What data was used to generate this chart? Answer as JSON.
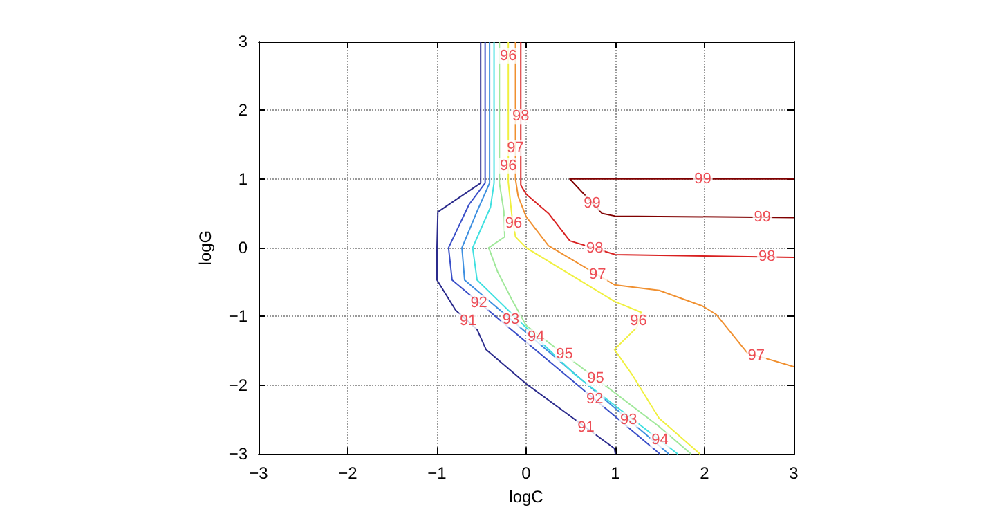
{
  "chart_data": {
    "type": "line",
    "xlabel": "logC",
    "ylabel": "logG",
    "xlim": [
      -3,
      3
    ],
    "ylim": [
      -3,
      3
    ],
    "xticks": [
      -3,
      -2,
      -1,
      0,
      1,
      2,
      3
    ],
    "yticks": [
      -3,
      -2,
      -1,
      0,
      1,
      2,
      3
    ],
    "grid": true,
    "marker": "none",
    "line_style": "solid",
    "series": [
      {
        "color": "#2b2b8c",
        "x": [
          -0.51,
          -0.51,
          -0.99,
          -1.0,
          -1.0,
          -0.79,
          -0.55,
          -0.45,
          0,
          0.99,
          1.0
        ],
        "values": [
          3,
          0.94,
          0.52,
          0,
          -0.47,
          -0.91,
          -1.19,
          -1.48,
          -1.98,
          -2.92,
          -3
        ]
      },
      {
        "color": "#3a4fc8",
        "x": [
          -0.46,
          -0.46,
          -0.64,
          -0.87,
          -0.83,
          1.5
        ],
        "values": [
          3,
          0.94,
          0.63,
          0,
          -0.47,
          -3
        ]
      },
      {
        "color": "#3d8fe0",
        "x": [
          -0.41,
          -0.41,
          -0.55,
          -0.72,
          -0.69,
          1.6
        ],
        "values": [
          3,
          0.94,
          0.53,
          0,
          -0.47,
          -3
        ]
      },
      {
        "color": "#40e0e0",
        "x": [
          -0.36,
          -0.36,
          -0.4,
          -0.6,
          -0.55,
          -0.05,
          0.55,
          1.7
        ],
        "values": [
          3,
          0.94,
          0.59,
          0,
          -0.47,
          -1.1,
          -1.85,
          -3
        ]
      },
      {
        "color": "#a0e89a",
        "x": [
          -0.3,
          -0.3,
          -0.25,
          -0.24,
          -0.42,
          -0.32,
          -0.15,
          0,
          1.49,
          1.85
        ],
        "values": [
          3,
          0.94,
          0.53,
          0.16,
          0,
          -0.35,
          -0.78,
          -1.13,
          -2.6,
          -3
        ]
      },
      {
        "color": "#f0f040",
        "x": [
          -0.2,
          -0.2,
          -0.16,
          -0.12,
          0,
          0.99,
          1.29,
          1.24,
          0.99,
          1.19,
          1.49,
          1.95
        ],
        "values": [
          3,
          0.95,
          0.47,
          0.16,
          0,
          -0.78,
          -0.94,
          -1.16,
          -1.48,
          -1.85,
          -2.48,
          -3
        ]
      },
      {
        "color": "#f09030",
        "x": [
          -0.12,
          -0.12,
          -0.09,
          0,
          0.25,
          0.99,
          1.49,
          1.98,
          2.13,
          2.48,
          3
        ],
        "values": [
          3,
          1.0,
          0.75,
          0.45,
          0.03,
          -0.54,
          -0.62,
          -0.85,
          -0.97,
          -1.53,
          -1.73
        ]
      },
      {
        "color": "#d82020",
        "x": [
          -0.06,
          -0.06,
          0,
          0.25,
          0.49,
          1.0,
          3
        ],
        "values": [
          3,
          0.91,
          0.78,
          0.5,
          0.1,
          -0.1,
          -0.14
        ]
      },
      {
        "color": "#800000",
        "x": [
          3,
          0.49,
          0.85,
          1.0,
          3
        ],
        "values": [
          1.0,
          1.0,
          0.5,
          0.46,
          0.44
        ]
      }
    ],
    "annotations": [
      {
        "text": "91",
        "x": -0.65,
        "y": -1.07
      },
      {
        "text": "91",
        "x": 0.67,
        "y": -2.62
      },
      {
        "text": "92",
        "x": -0.53,
        "y": -0.8
      },
      {
        "text": "93",
        "x": -0.17,
        "y": -1.05
      },
      {
        "text": "94",
        "x": 0.11,
        "y": -1.3
      },
      {
        "text": "95",
        "x": 0.43,
        "y": -1.55
      },
      {
        "text": "92",
        "x": 0.77,
        "y": -2.2
      },
      {
        "text": "93",
        "x": 1.15,
        "y": -2.5
      },
      {
        "text": "94",
        "x": 1.5,
        "y": -2.8
      },
      {
        "text": "95",
        "x": 0.78,
        "y": -1.9
      },
      {
        "text": "96",
        "x": -0.2,
        "y": 1.19
      },
      {
        "text": "97",
        "x": -0.12,
        "y": 1.45
      },
      {
        "text": "96",
        "x": -0.2,
        "y": 2.79
      },
      {
        "text": "98",
        "x": -0.06,
        "y": 1.91
      },
      {
        "text": "96",
        "x": -0.14,
        "y": 0.35
      },
      {
        "text": "99",
        "x": 1.98,
        "y": 1.0
      },
      {
        "text": "99",
        "x": 0.74,
        "y": 0.65
      },
      {
        "text": "99",
        "x": 2.65,
        "y": 0.44
      },
      {
        "text": "98",
        "x": 0.77,
        "y": -0.01
      },
      {
        "text": "98",
        "x": 2.7,
        "y": -0.13
      },
      {
        "text": "97",
        "x": 0.8,
        "y": -0.39
      },
      {
        "text": "97",
        "x": 2.58,
        "y": -1.57
      },
      {
        "text": "96",
        "x": 1.26,
        "y": -1.07
      }
    ]
  }
}
